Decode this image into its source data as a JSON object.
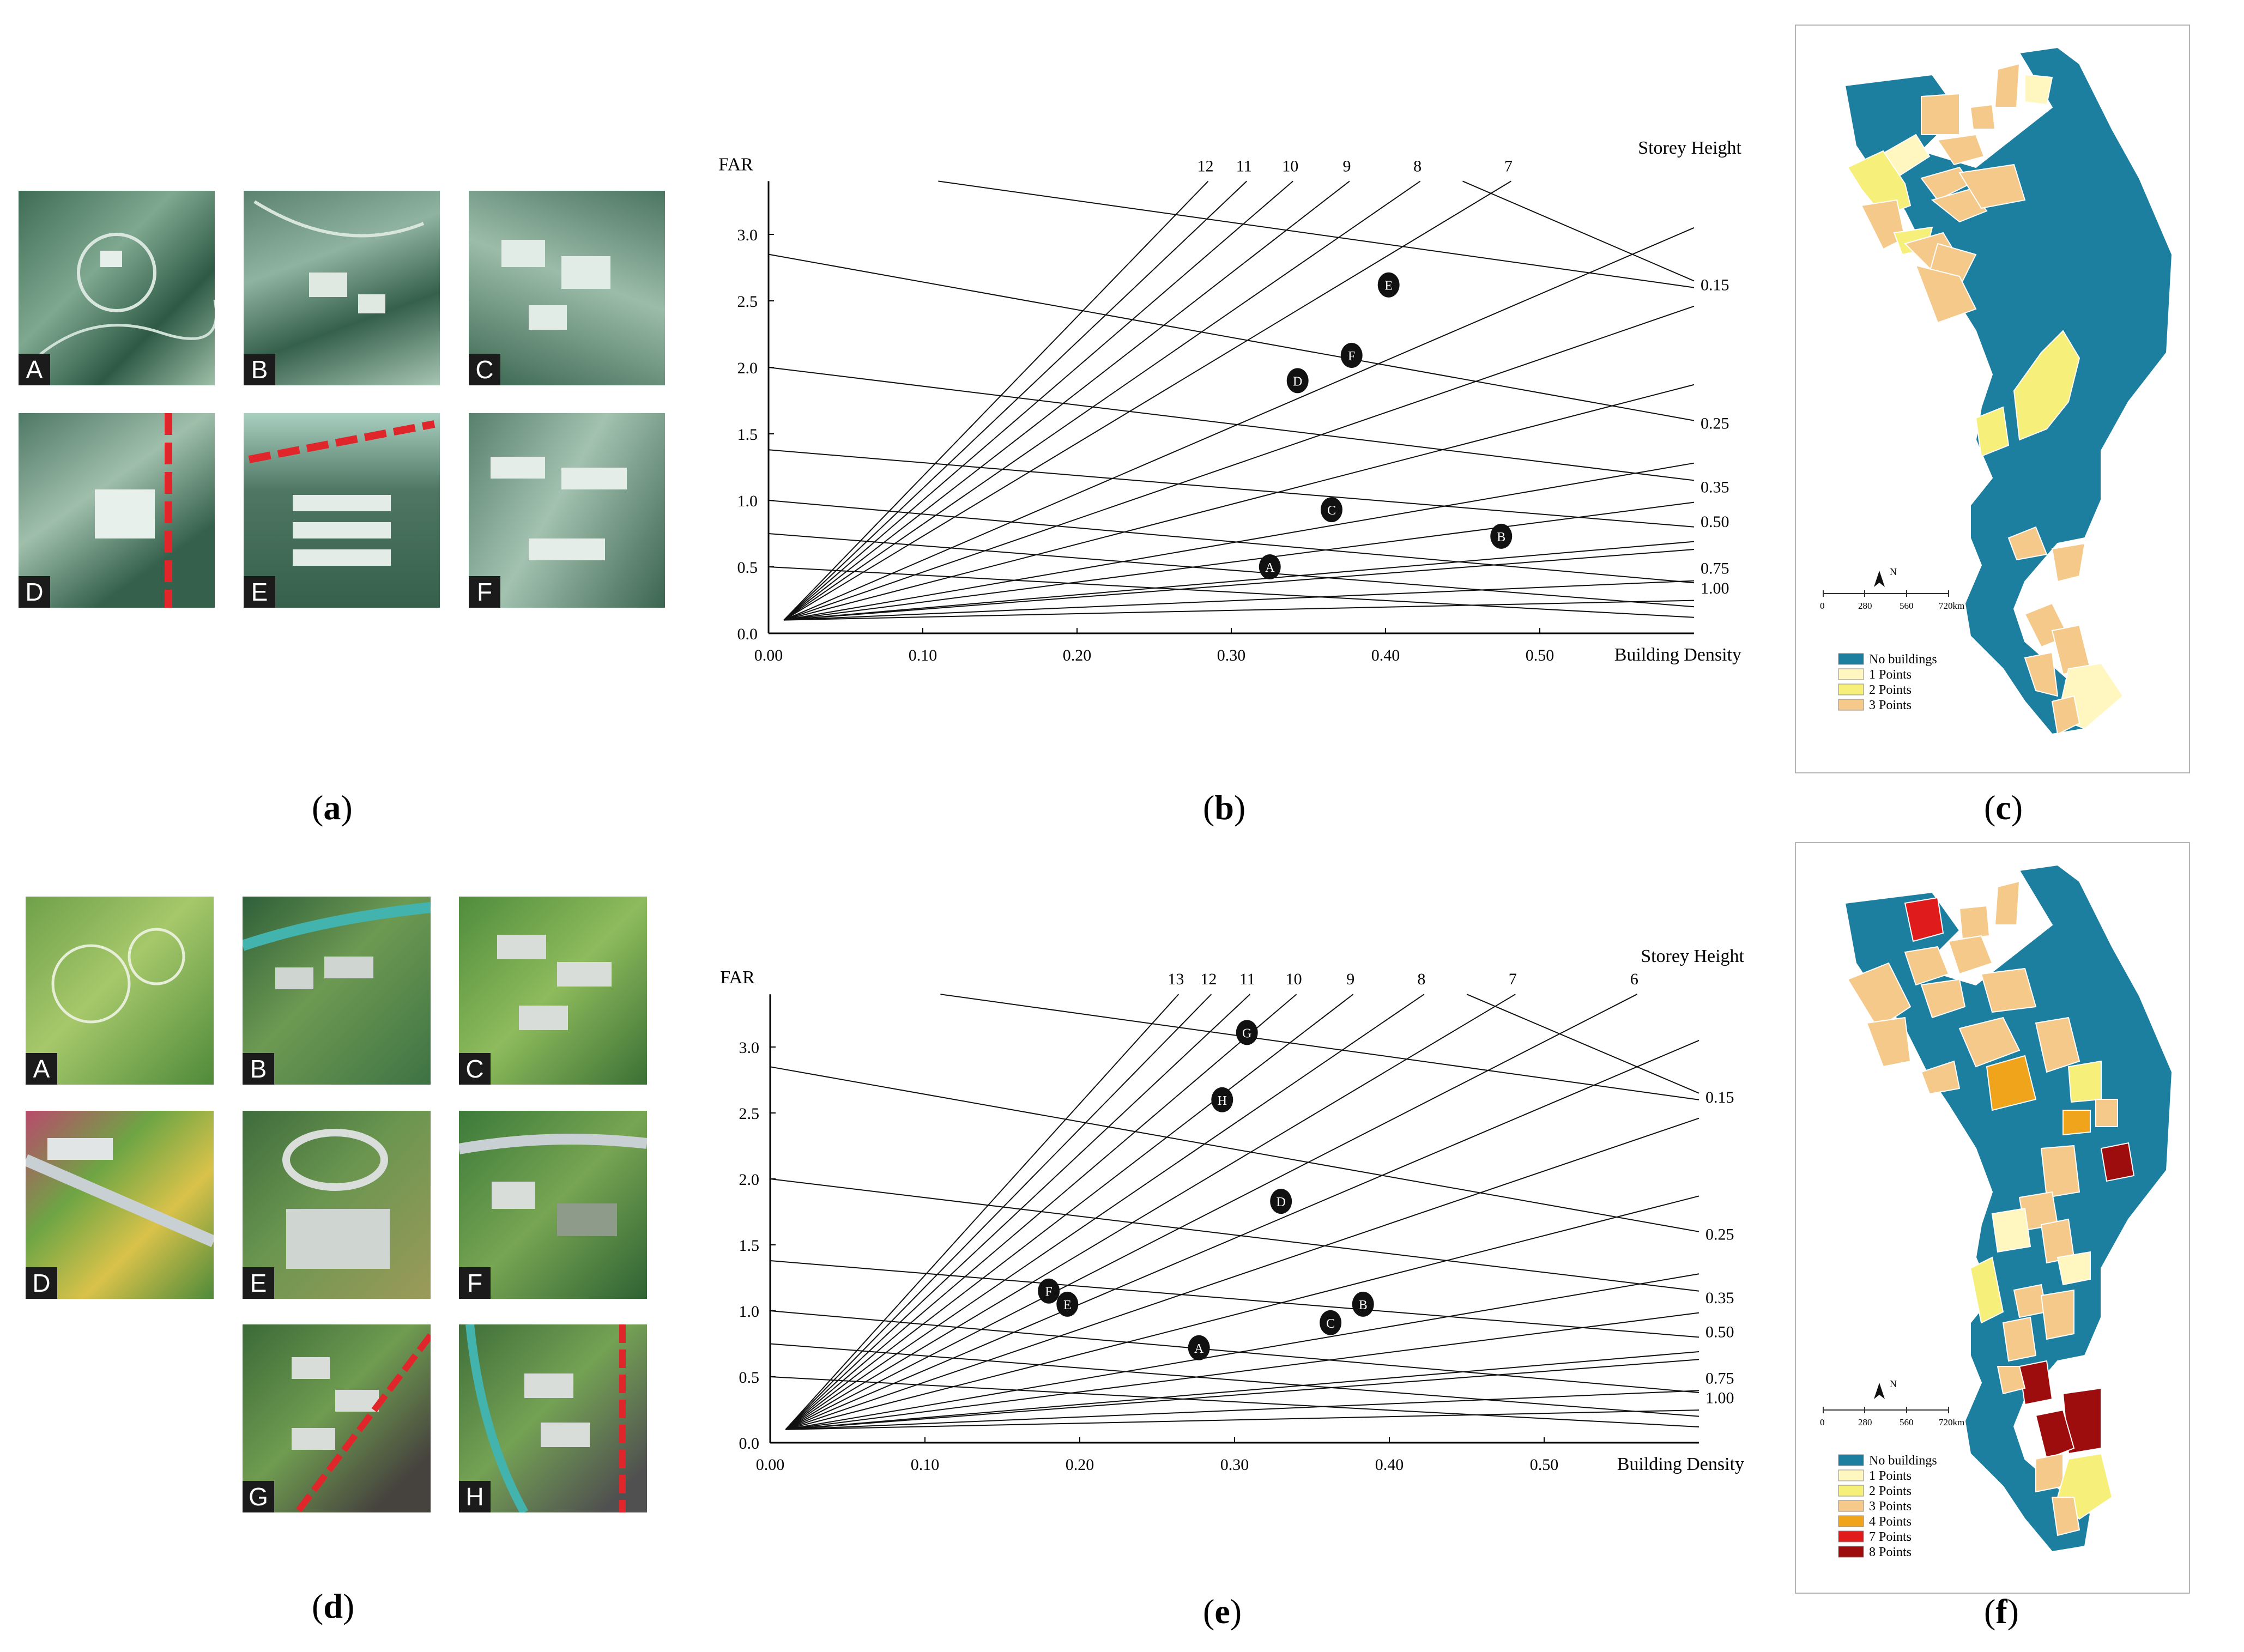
{
  "panels": {
    "a": {
      "label": "a",
      "thumbs": [
        "A",
        "B",
        "C",
        "D",
        "E",
        "F"
      ]
    },
    "d": {
      "label": "d",
      "thumbs": [
        "A",
        "B",
        "C",
        "D",
        "E",
        "F",
        "G",
        "H"
      ]
    },
    "c": {
      "label": "c"
    },
    "f": {
      "label": "f"
    }
  },
  "colors": {
    "no_buildings": "#1d7fa0",
    "p1": "#fff6c0",
    "p2": "#f6f07a",
    "p3": "#f5c98a",
    "p4": "#f0a41c",
    "p7": "#e01b1b",
    "p8": "#9e0d0d",
    "dash": "#e0262a"
  },
  "map_c": {
    "north": "N",
    "scale_ticks": [
      "0",
      "280",
      "560",
      "720km"
    ],
    "legend": [
      "No buildings",
      "1 Points",
      "2 Points",
      "3 Points"
    ]
  },
  "map_f": {
    "north": "N",
    "scale_ticks": [
      "0",
      "280",
      "560",
      "720km"
    ],
    "legend": [
      "No buildings",
      "1 Points",
      "2 Points",
      "3 Points",
      "4 Points",
      "7 Points",
      "8 Points"
    ]
  },
  "chart_data": [
    {
      "type": "scatter",
      "panel": "b",
      "ylabel": "FAR",
      "xlabel": "Building Density",
      "height_title": "Storey Height",
      "xlim": [
        0,
        0.6
      ],
      "ylim": [
        0,
        3.4
      ],
      "x_ticks": [
        "0.00",
        "0.10",
        "0.20",
        "0.30",
        "0.40",
        "0.50"
      ],
      "y_ticks": [
        "0.0",
        "0.5",
        "1.0",
        "1.5",
        "2.0",
        "2.5",
        "3.0"
      ],
      "storey_heights": [
        "12",
        "11",
        "10",
        "9",
        "8",
        "7"
      ],
      "open_space_ratios": [
        "0.15",
        "0.25",
        "0.35",
        "0.50",
        "0.75",
        "1.00"
      ],
      "points": [
        {
          "label": "A",
          "x": 0.325,
          "y": 0.5
        },
        {
          "label": "B",
          "x": 0.475,
          "y": 0.73
        },
        {
          "label": "C",
          "x": 0.365,
          "y": 0.93
        },
        {
          "label": "D",
          "x": 0.343,
          "y": 1.9
        },
        {
          "label": "E",
          "x": 0.402,
          "y": 2.62
        },
        {
          "label": "F",
          "x": 0.378,
          "y": 2.09
        }
      ]
    },
    {
      "type": "scatter",
      "panel": "e",
      "ylabel": "FAR",
      "xlabel": "Building Density",
      "height_title": "Storey Height",
      "xlim": [
        0,
        0.6
      ],
      "ylim": [
        0,
        3.4
      ],
      "x_ticks": [
        "0.00",
        "0.10",
        "0.20",
        "0.30",
        "0.40",
        "0.50"
      ],
      "y_ticks": [
        "0.0",
        "0.5",
        "1.0",
        "1.5",
        "2.0",
        "2.5",
        "3.0"
      ],
      "storey_heights": [
        "13",
        "12",
        "11",
        "10",
        "9",
        "8",
        "7",
        "6"
      ],
      "open_space_ratios": [
        "0.15",
        "0.25",
        "0.35",
        "0.50",
        "0.75",
        "1.00"
      ],
      "points": [
        {
          "label": "A",
          "x": 0.277,
          "y": 0.72
        },
        {
          "label": "B",
          "x": 0.383,
          "y": 1.05
        },
        {
          "label": "C",
          "x": 0.362,
          "y": 0.91
        },
        {
          "label": "D",
          "x": 0.33,
          "y": 1.83
        },
        {
          "label": "E",
          "x": 0.192,
          "y": 1.05
        },
        {
          "label": "F",
          "x": 0.18,
          "y": 1.15
        },
        {
          "label": "G",
          "x": 0.308,
          "y": 3.11
        },
        {
          "label": "H",
          "x": 0.292,
          "y": 2.6
        }
      ]
    }
  ]
}
